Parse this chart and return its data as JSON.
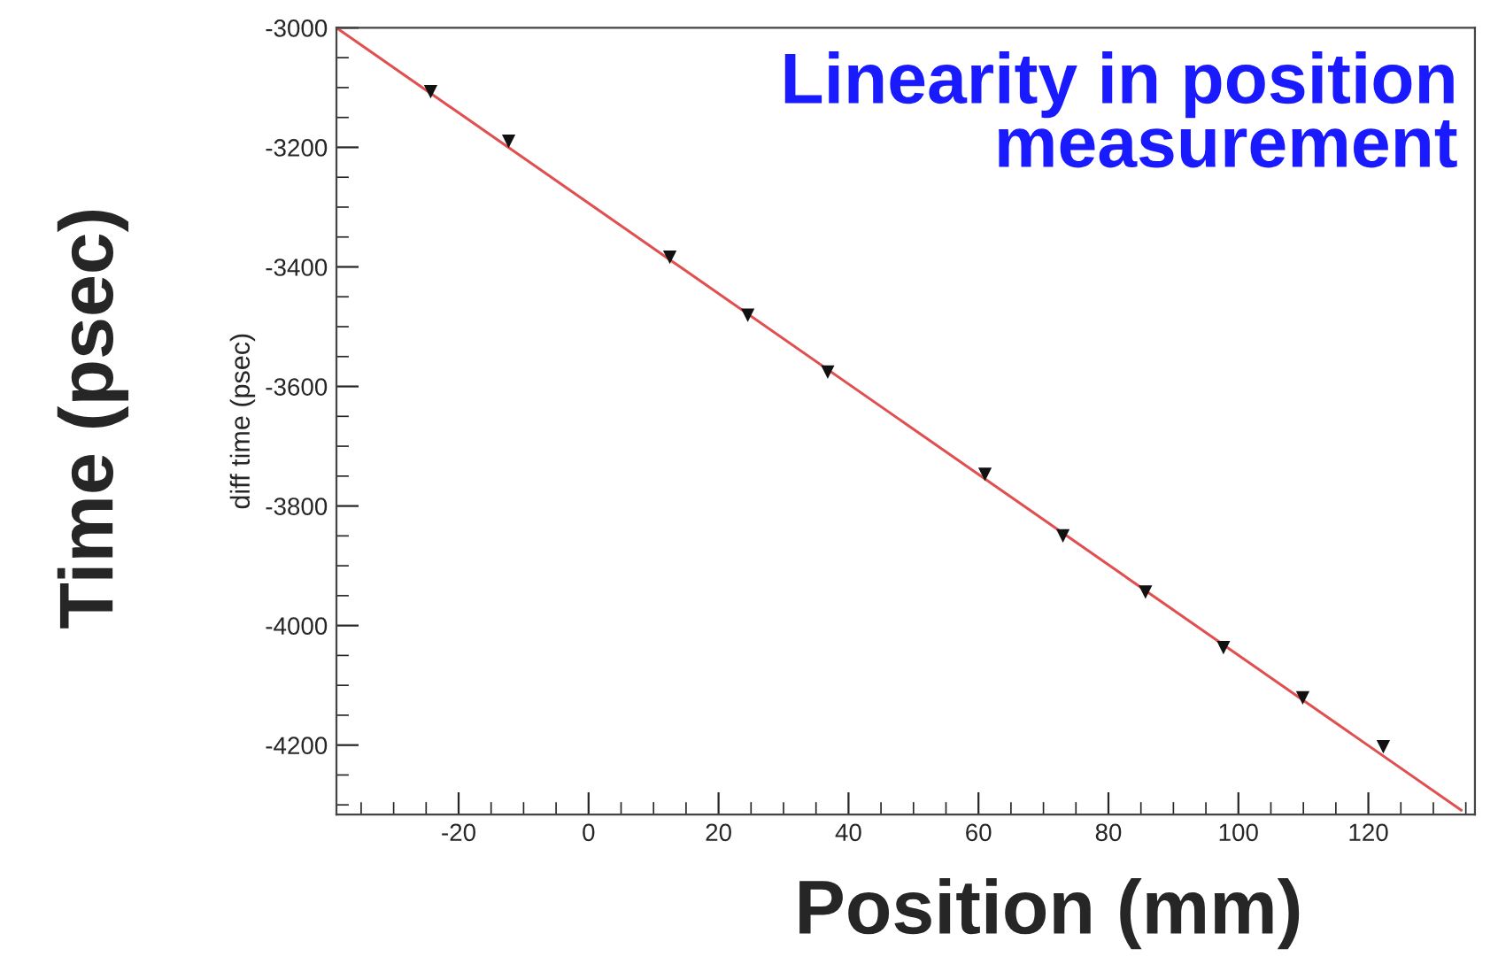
{
  "chart_data": {
    "type": "scatter",
    "title": "Linearity in position measurement",
    "ylabel": "diff time (psec)",
    "annotations": [
      "Time (psec)",
      "Position (mm)"
    ],
    "series": [
      {
        "color": "#111111",
        "marker": "triangle",
        "x": [
          -24.3,
          -12.3,
          12.5,
          24.5,
          36.8,
          61.0,
          73.0,
          85.7,
          97.7,
          109.9,
          122.3
        ],
        "values": [
          -3107,
          -3190,
          -3384,
          -3481,
          -3576,
          -3747,
          -3850,
          -3944,
          -4037,
          -4121,
          -4203
        ]
      },
      {
        "type": "line",
        "color": "#e05050",
        "marker": "none",
        "line_style": "solid",
        "x": [
          -38.8,
          134.3
        ],
        "values": [
          -3000,
          -4309
        ]
      }
    ],
    "xlim": [
      -38.8,
      136.4
    ],
    "xticks": [
      -20,
      0,
      20,
      40,
      60,
      80,
      100,
      120
    ],
    "ylim": [
      -4316,
      -3000
    ],
    "yticks": [
      -4200,
      -4000,
      -3800,
      -3600,
      -3400,
      -3200,
      -3000
    ],
    "grid": false,
    "legend": false
  }
}
